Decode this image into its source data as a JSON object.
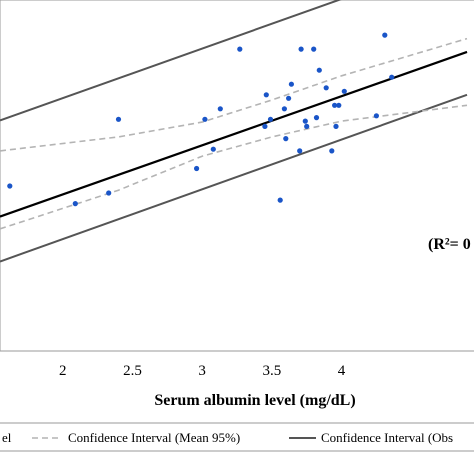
{
  "chart_data": {
    "type": "scatter",
    "xlabel": "Serum albumin level (mg/dL)",
    "x_ticks": [
      "2",
      "2.5",
      "3",
      "3.5",
      "4"
    ],
    "xlim": [
      1.55,
      4.95
    ],
    "ylim": [
      0,
      1
    ],
    "annotation": "(R²= 0",
    "colors": {
      "points": "#1a55c8",
      "fit": "#000000",
      "ci_mean": "#b4b4b4",
      "ci_obs": "#555555",
      "frame": "#9a9a9a"
    },
    "legend": [
      {
        "label": "el",
        "style": "fit"
      },
      {
        "label": "Confidence Interval (Mean 95%)",
        "style": "ci_mean"
      },
      {
        "label": "Confidence Interval (Obs",
        "style": "ci_obs"
      }
    ],
    "regression": {
      "intercept": 0.166,
      "slope": 0.14
    },
    "ci_mean": {
      "upper": [
        [
          1.55,
          0.57
        ],
        [
          2.4,
          0.61
        ],
        [
          3.0,
          0.652
        ],
        [
          3.5,
          0.715
        ],
        [
          4.0,
          0.784
        ],
        [
          4.9,
          0.89
        ]
      ],
      "lower": [
        [
          1.55,
          0.348
        ],
        [
          2.4,
          0.458
        ],
        [
          3.0,
          0.555
        ],
        [
          3.5,
          0.61
        ],
        [
          4.0,
          0.655
        ],
        [
          4.9,
          0.7
        ]
      ]
    },
    "ci_obs": {
      "upper": [
        [
          1.55,
          0.657
        ],
        [
          4.9,
          1.13
        ]
      ],
      "lower": [
        [
          1.55,
          0.255
        ],
        [
          4.9,
          0.73
        ]
      ]
    },
    "points": [
      [
        1.62,
        0.47
      ],
      [
        2.09,
        0.42
      ],
      [
        2.33,
        0.45
      ],
      [
        2.4,
        0.66
      ],
      [
        2.96,
        0.52
      ],
      [
        3.02,
        0.66
      ],
      [
        3.08,
        0.575
      ],
      [
        3.13,
        0.69
      ],
      [
        3.27,
        0.86
      ],
      [
        3.45,
        0.64
      ],
      [
        3.46,
        0.73
      ],
      [
        3.49,
        0.66
      ],
      [
        3.56,
        0.43
      ],
      [
        3.59,
        0.69
      ],
      [
        3.6,
        0.605
      ],
      [
        3.62,
        0.72
      ],
      [
        3.64,
        0.76
      ],
      [
        3.7,
        0.57
      ],
      [
        3.71,
        0.86
      ],
      [
        3.74,
        0.655
      ],
      [
        3.75,
        0.64
      ],
      [
        3.8,
        0.86
      ],
      [
        3.82,
        0.665
      ],
      [
        3.84,
        0.8
      ],
      [
        3.89,
        0.75
      ],
      [
        3.93,
        0.57
      ],
      [
        3.95,
        0.7
      ],
      [
        3.96,
        0.64
      ],
      [
        3.98,
        0.7
      ],
      [
        4.02,
        0.74
      ],
      [
        4.25,
        0.67
      ],
      [
        4.31,
        0.9
      ],
      [
        4.36,
        0.78
      ]
    ]
  }
}
